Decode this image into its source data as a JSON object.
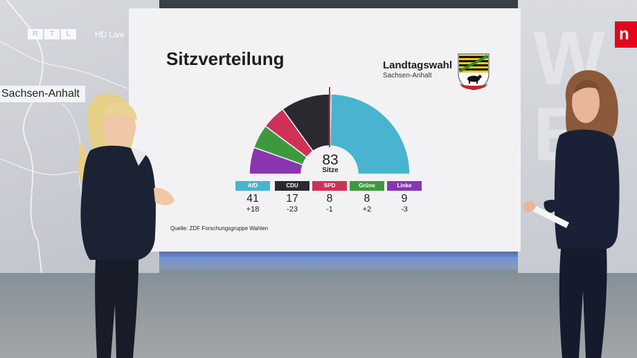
{
  "broadcast": {
    "channel_logo_letters": [
      "R",
      "T",
      "L"
    ],
    "stream_label": "HD Live",
    "corner_logo": "n",
    "corner_color": "#e3061b"
  },
  "map": {
    "region_label": "Sachsen-Anhalt"
  },
  "wall": {
    "letters": "W\nE"
  },
  "graphic": {
    "title": "Sitzverteilung",
    "election_title": "Landtagswahl",
    "election_subtitle": "Sachsen-Anhalt",
    "total_seats": "83",
    "total_label": "Sitze",
    "source": "Quelle: ZDF Forschungsgruppe Wahlen",
    "crest_icon": "sachsen-anhalt-coat-of-arms-icon"
  },
  "chart_data": {
    "type": "pie",
    "variant": "parliament-semicircle",
    "title": "Sitzverteilung",
    "total": 83,
    "majority_marker": true,
    "series": [
      {
        "name": "AfD",
        "seats": 41,
        "change": "+18",
        "color": "#49b4cf",
        "label_color": "#49b4cf"
      },
      {
        "name": "CDU",
        "seats": 17,
        "change": "-23",
        "color": "#2a2930",
        "label_color": "#2a2930"
      },
      {
        "name": "SPD",
        "seats": 8,
        "change": "-1",
        "color": "#cf3157",
        "label_color": "#cf3157"
      },
      {
        "name": "Grüne",
        "seats": 8,
        "change": "+2",
        "color": "#3c9a3c",
        "label_color": "#3c9a3c"
      },
      {
        "name": "Linke",
        "seats": 9,
        "change": "-3",
        "color": "#8a35b0",
        "label_color": "#8a35b0"
      }
    ]
  }
}
